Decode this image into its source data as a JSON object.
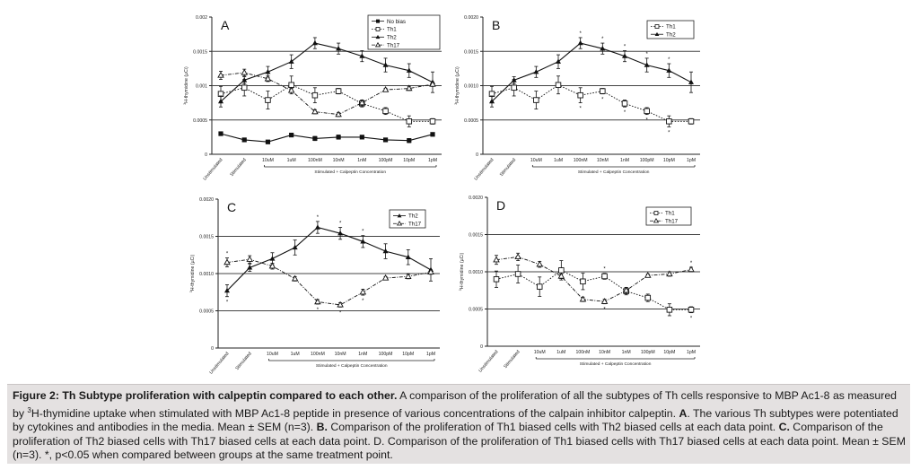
{
  "x_categories": [
    "Unstimulated",
    "Stimulated",
    "10uM",
    "1uM",
    "100nM",
    "10nM",
    "1nM",
    "100pM",
    "10pM",
    "1pM"
  ],
  "x_group_label": "Stimulated + Calpeptin Concentration",
  "y_axis_label_prefix": "3",
  "y_axis_label": "H-thymidine (µCi)",
  "chart_data": [
    {
      "panel": "A",
      "type": "line",
      "y_ticks": [
        "0.002",
        "0.0015",
        "0.001",
        "0.0005",
        "0"
      ],
      "ylim": [
        0,
        0.002
      ],
      "legend": "top-right",
      "series": [
        {
          "name": "No bias",
          "marker": "filled-square",
          "dash": "solid",
          "values": [
            0.0003,
            0.00021,
            0.00018,
            0.00028,
            0.00023,
            0.00025,
            0.00025,
            0.00021,
            0.0002,
            0.00029
          ],
          "errors": [
            0,
            0,
            0,
            0,
            3e-05,
            3e-05,
            0,
            0,
            3e-05,
            0
          ]
        },
        {
          "name": "Th1",
          "marker": "open-square",
          "dash": "dotted",
          "values": [
            0.00088,
            0.00097,
            0.00079,
            0.00101,
            0.00086,
            0.00092,
            0.00074,
            0.00063,
            0.00048,
            0.00048
          ],
          "errors": [
            0.00011,
            0.00012,
            0.00013,
            0.00013,
            0.00011,
            4e-05,
            5e-05,
            5e-05,
            8e-05,
            4e-05
          ]
        },
        {
          "name": "Th2",
          "marker": "filled-triangle",
          "dash": "solid",
          "values": [
            0.00077,
            0.00108,
            0.0012,
            0.00135,
            0.00162,
            0.00154,
            0.00143,
            0.0013,
            0.00122,
            0.00105
          ],
          "errors": [
            8e-05,
            5e-05,
            8e-05,
            0.0001,
            8e-05,
            8e-05,
            8e-05,
            0.0001,
            0.0001,
            0.00015
          ]
        },
        {
          "name": "Th17",
          "marker": "open-triangle",
          "dash": "dash-dot",
          "values": [
            0.00115,
            0.00119,
            0.0011,
            0.00093,
            0.00062,
            0.00058,
            0.00075,
            0.00094,
            0.00096,
            0.00102
          ],
          "errors": [
            6e-05,
            5e-05,
            4e-05,
            3e-05,
            3e-05,
            3e-05,
            4e-05,
            2e-05,
            3e-05,
            3e-05
          ]
        }
      ]
    },
    {
      "panel": "B",
      "type": "line",
      "y_ticks": [
        "0.0020",
        "0.0015",
        "0.0010",
        "0.0005",
        "0"
      ],
      "ylim": [
        0,
        0.002
      ],
      "legend": "top-right",
      "series": [
        {
          "name": "Th1",
          "marker": "open-square",
          "dash": "dotted",
          "values": [
            0.00088,
            0.00097,
            0.00079,
            0.00101,
            0.00086,
            0.00092,
            0.00074,
            0.00063,
            0.00048,
            0.00048
          ],
          "errors": [
            0.00011,
            0.00012,
            0.00013,
            0.00013,
            0.00011,
            4e-05,
            5e-05,
            5e-05,
            8e-05,
            4e-05
          ]
        },
        {
          "name": "Th2",
          "marker": "filled-triangle",
          "dash": "solid",
          "values": [
            0.00077,
            0.00108,
            0.0012,
            0.00135,
            0.00162,
            0.00154,
            0.00143,
            0.0013,
            0.00122,
            0.00105
          ],
          "errors": [
            8e-05,
            5e-05,
            8e-05,
            0.0001,
            8e-05,
            8e-05,
            8e-05,
            0.0001,
            0.0001,
            0.00015
          ]
        }
      ],
      "significance_index": [
        4,
        5,
        6,
        7,
        8
      ],
      "significance_marker": "*"
    },
    {
      "panel": "C",
      "type": "line",
      "y_ticks": [
        "0.0020",
        "0.0015",
        "0.0010",
        "0.0005",
        "0"
      ],
      "ylim": [
        0,
        0.002
      ],
      "legend": "top-right",
      "series": [
        {
          "name": "Th2",
          "marker": "filled-triangle",
          "dash": "solid",
          "values": [
            0.00077,
            0.00108,
            0.0012,
            0.00135,
            0.00162,
            0.00154,
            0.00143,
            0.0013,
            0.00122,
            0.00105
          ],
          "errors": [
            8e-05,
            5e-05,
            8e-05,
            0.0001,
            8e-05,
            8e-05,
            8e-05,
            0.0001,
            0.0001,
            0.00015
          ]
        },
        {
          "name": "Th17",
          "marker": "open-triangle",
          "dash": "dash-dot",
          "values": [
            0.00115,
            0.00119,
            0.0011,
            0.00093,
            0.00062,
            0.00058,
            0.00075,
            0.00094,
            0.00096,
            0.00102
          ],
          "errors": [
            6e-05,
            5e-05,
            4e-05,
            3e-05,
            3e-05,
            3e-05,
            4e-05,
            2e-05,
            3e-05,
            3e-05
          ]
        }
      ],
      "significance_index": [
        0,
        4,
        5,
        6
      ],
      "significance_marker": "*"
    },
    {
      "panel": "D",
      "type": "line",
      "y_ticks": [
        "0.0020",
        "0.0015",
        "0.0010",
        "0.0005",
        "0"
      ],
      "ylim": [
        0,
        0.002
      ],
      "legend": "top-right",
      "series": [
        {
          "name": "Th1",
          "marker": "open-square",
          "dash": "dotted",
          "values": [
            0.0009,
            0.00097,
            0.0008,
            0.00102,
            0.00087,
            0.00094,
            0.00074,
            0.00065,
            0.00049,
            0.00049
          ],
          "errors": [
            0.00011,
            0.00012,
            0.00013,
            0.00013,
            0.00011,
            4e-05,
            5e-05,
            5e-05,
            8e-05,
            4e-05
          ]
        },
        {
          "name": "Th17",
          "marker": "open-triangle",
          "dash": "dash-dot",
          "values": [
            0.00116,
            0.0012,
            0.0011,
            0.00094,
            0.00063,
            0.0006,
            0.00075,
            0.00095,
            0.00097,
            0.00103
          ],
          "errors": [
            6e-05,
            5e-05,
            4e-05,
            3e-05,
            3e-05,
            3e-05,
            4e-05,
            2e-05,
            3e-05,
            3e-05
          ]
        }
      ],
      "significance_index": [
        5,
        9
      ],
      "significance_marker": "*"
    }
  ],
  "caption": {
    "fig_label": "Figure 2: Th Subtype proliferation with calpeptin compared to each other.",
    "p1": " A comparison of the proliferation of all the subtypes of Th cells responsive to MBP Ac1-8 as measured by ",
    "sup": "3",
    "p2": "H-thymidine uptake when stimulated with MBP Ac1-8 peptide in presence of various concentrations of the calpain inhibitor calpeptin. ",
    "a": "A",
    "p3": ". The various Th subtypes were potentiated by cytokines and antibodies in the media. Mean ± SEM (n=3). ",
    "b": "B.",
    "p4": " Comparison of the proliferation of Th1 biased cells with Th2 biased cells at each data point. ",
    "c": "C.",
    "p5": " Comparison of the proliferation of Th2 biased cells with Th17 biased cells at each data point. D. Comparison of the proliferation of Th1 biased cells with Th17 biased cells at each data point. Mean ± SEM (n=3). *, p<0.05 when compared between groups at the same treatment point."
  }
}
